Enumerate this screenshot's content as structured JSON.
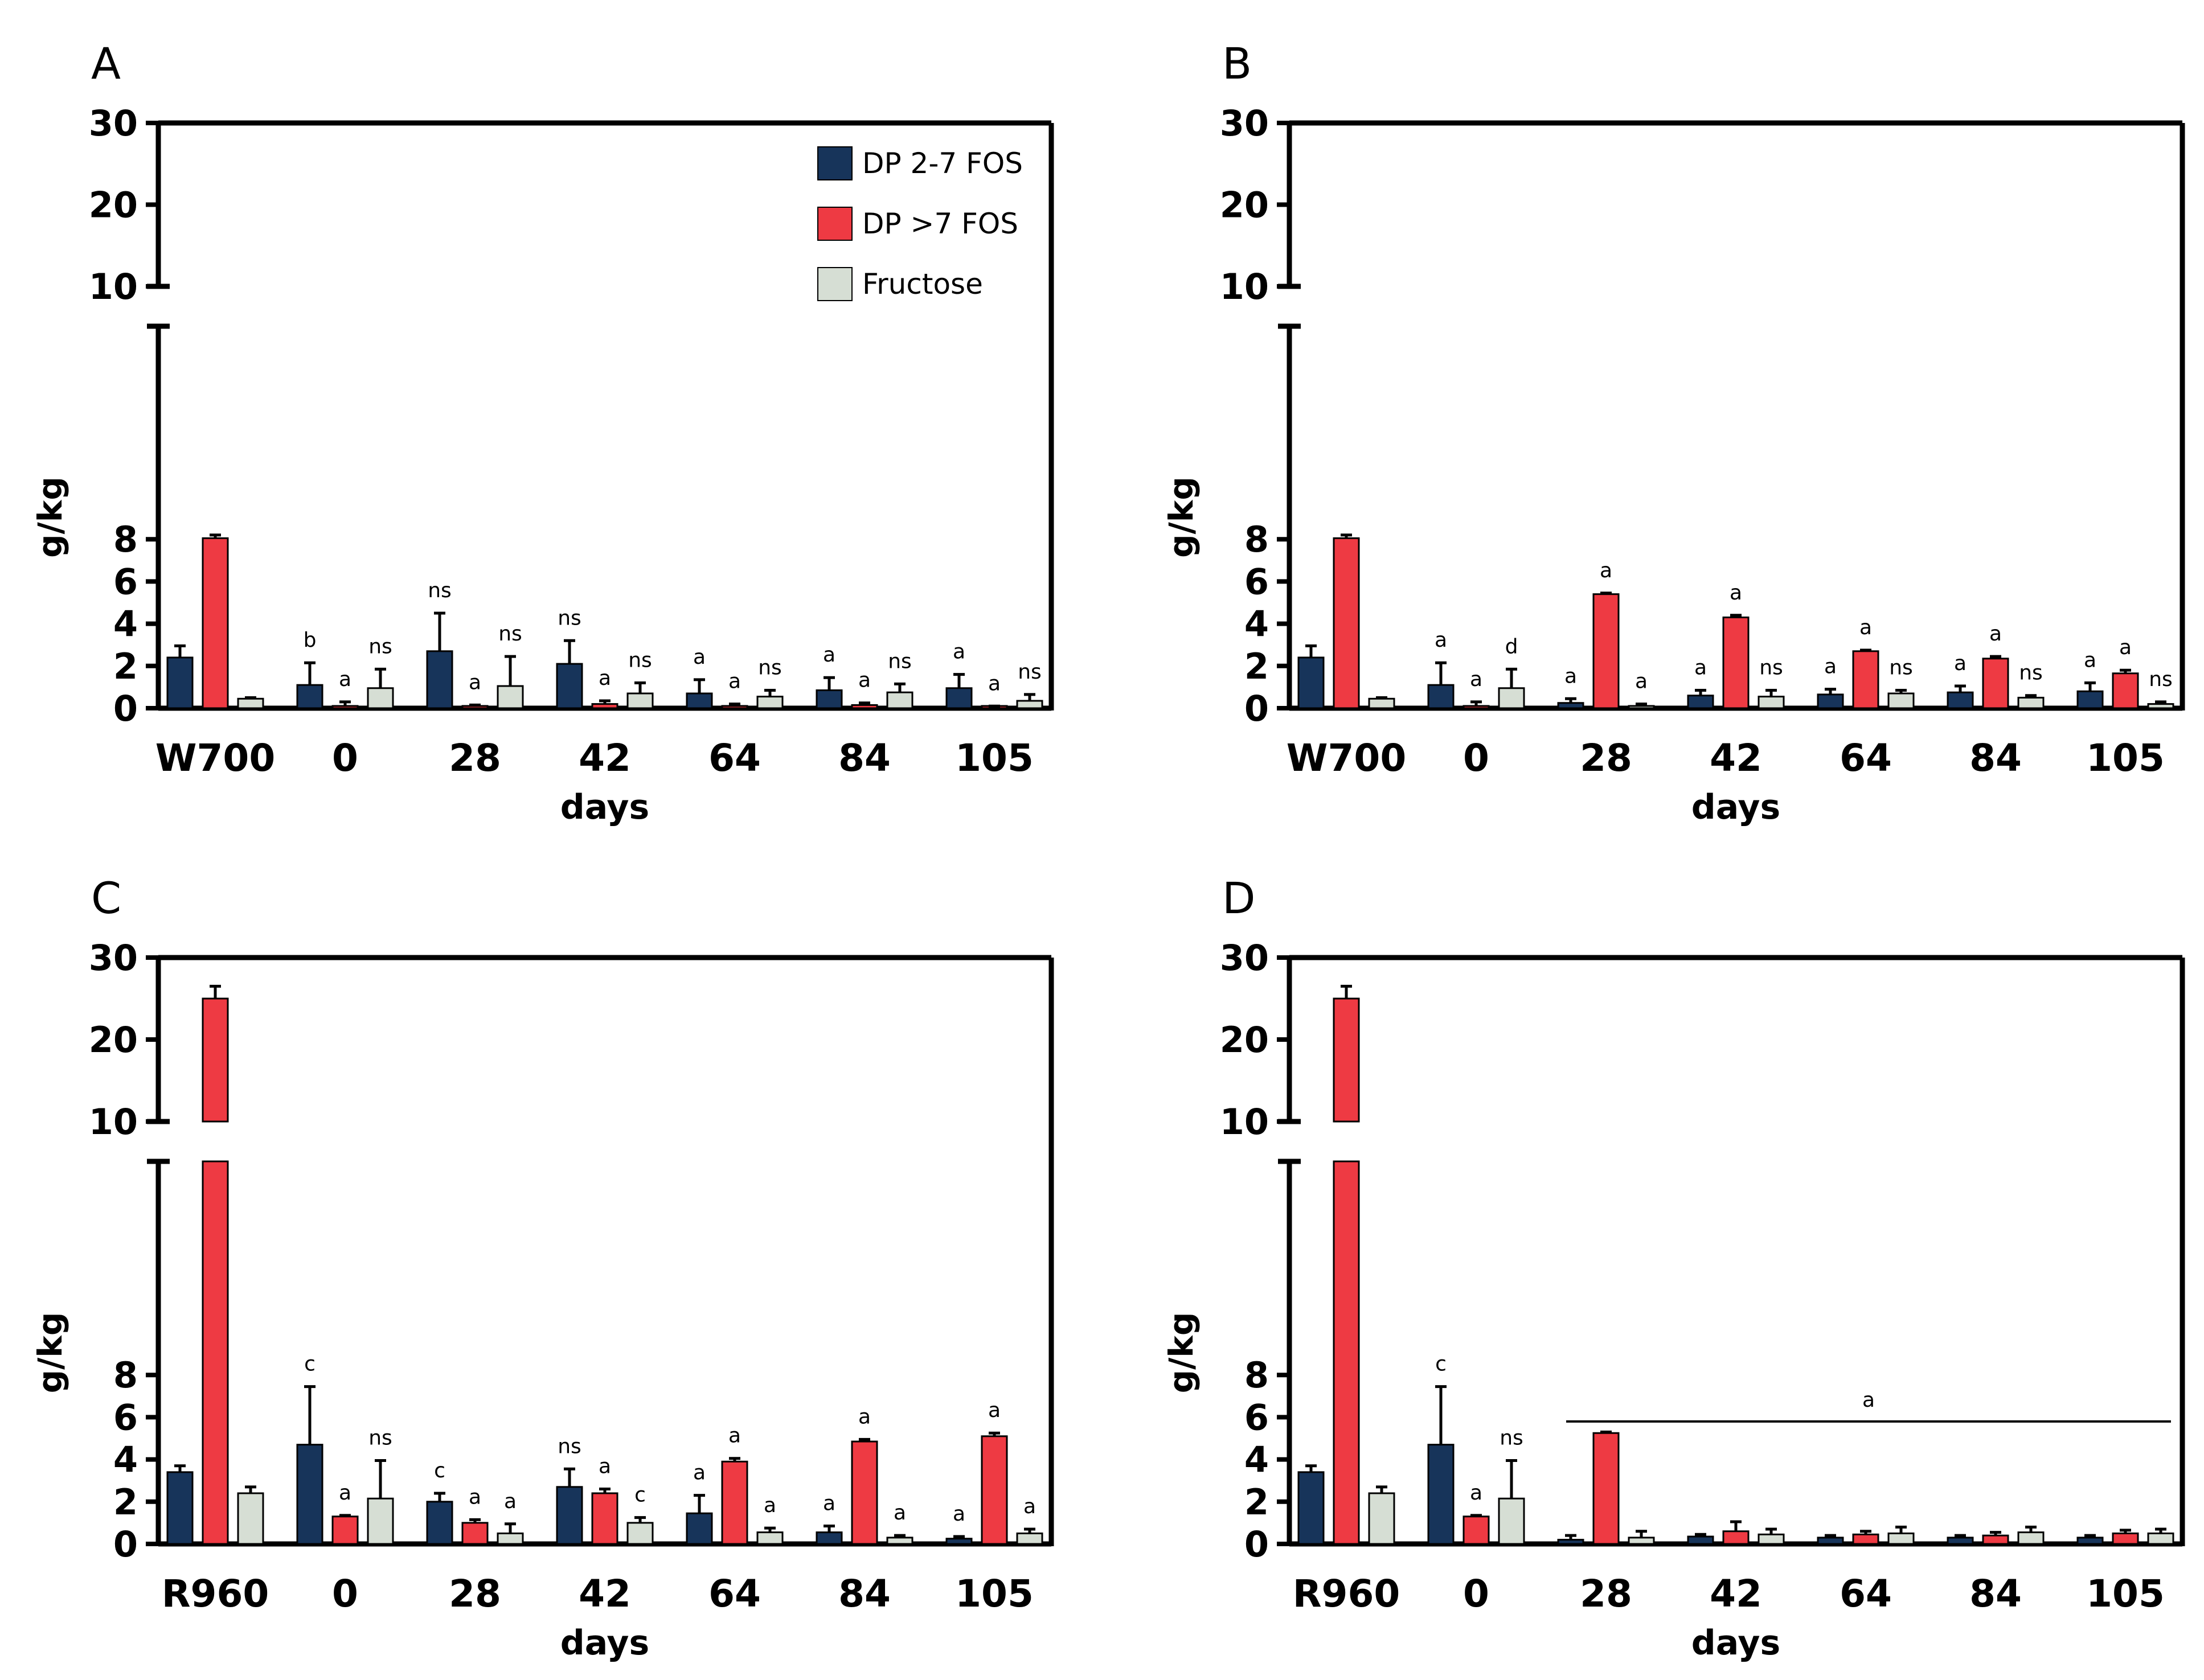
{
  "colors": {
    "dp27": "#17345a",
    "dp7": "#ee3a43",
    "fructose": "#d6ded4",
    "axis": "#000000"
  },
  "legend": [
    {
      "label": "DP 2-7 FOS",
      "color": "#17345a"
    },
    {
      "label": "DP >7 FOS",
      "color": "#ee3a43"
    },
    {
      "label": "Fructose",
      "color": "#d6ded4"
    }
  ],
  "chart_data": [
    {
      "panel": "A",
      "type": "bar",
      "ylabel": "g/kg",
      "xlabel": "days",
      "y_ticks": [
        "0",
        "2",
        "4",
        "6",
        "8",
        "10",
        "20",
        "30"
      ],
      "categories": [
        "W700",
        "0",
        "28",
        "42",
        "64",
        "84",
        "105"
      ],
      "series": [
        {
          "name": "DP 2-7 FOS",
          "values": [
            2.4,
            1.1,
            2.7,
            2.1,
            0.7,
            0.85,
            0.95
          ],
          "errors": [
            0.55,
            1.05,
            1.8,
            1.1,
            0.65,
            0.6,
            0.65
          ],
          "sig": [
            "",
            "b",
            "ns",
            "ns",
            "a",
            "a",
            "a"
          ]
        },
        {
          "name": "DP >7 FOS",
          "values": [
            8.05,
            0.1,
            0.1,
            0.2,
            0.1,
            0.15,
            0.05
          ],
          "errors": [
            0.15,
            0.2,
            0.05,
            0.15,
            0.1,
            0.1,
            0.05
          ],
          "sig": [
            "",
            "a",
            "a",
            "a",
            "a",
            "a",
            "a"
          ]
        },
        {
          "name": "Fructose",
          "values": [
            0.45,
            0.95,
            1.05,
            0.7,
            0.55,
            0.75,
            0.35
          ],
          "errors": [
            0.05,
            0.9,
            1.4,
            0.5,
            0.3,
            0.4,
            0.3
          ],
          "sig": [
            "",
            "ns",
            "ns",
            "ns",
            "ns",
            "ns",
            "ns"
          ]
        }
      ],
      "hline": null
    },
    {
      "panel": "B",
      "type": "bar",
      "ylabel": "g/kg",
      "xlabel": "days",
      "y_ticks": [
        "0",
        "2",
        "4",
        "6",
        "8",
        "10",
        "20",
        "30"
      ],
      "categories": [
        "W700",
        "0",
        "28",
        "42",
        "64",
        "84",
        "105"
      ],
      "series": [
        {
          "name": "DP 2-7 FOS",
          "values": [
            2.4,
            1.1,
            0.25,
            0.6,
            0.65,
            0.75,
            0.8
          ],
          "errors": [
            0.55,
            1.05,
            0.2,
            0.25,
            0.25,
            0.3,
            0.4
          ],
          "sig": [
            "",
            "a",
            "a",
            "a",
            "a",
            "a",
            "a"
          ]
        },
        {
          "name": "DP >7 FOS",
          "values": [
            8.05,
            0.1,
            5.4,
            4.3,
            2.7,
            2.35,
            1.65
          ],
          "errors": [
            0.15,
            0.2,
            0.05,
            0.1,
            0.05,
            0.1,
            0.15
          ],
          "sig": [
            "",
            "a",
            "a",
            "a",
            "a",
            "a",
            "a"
          ]
        },
        {
          "name": "Fructose",
          "values": [
            0.45,
            0.95,
            0.1,
            0.55,
            0.7,
            0.5,
            0.2
          ],
          "errors": [
            0.05,
            0.9,
            0.1,
            0.3,
            0.15,
            0.1,
            0.1
          ],
          "sig": [
            "",
            "d",
            "a",
            "ns",
            "ns",
            "ns",
            "ns"
          ]
        }
      ],
      "hline": null
    },
    {
      "panel": "C",
      "type": "bar",
      "ylabel": "g/kg",
      "xlabel": "days",
      "y_ticks": [
        "0",
        "2",
        "4",
        "6",
        "8",
        "10",
        "20",
        "30"
      ],
      "categories": [
        "R960",
        "0",
        "28",
        "42",
        "64",
        "84",
        "105"
      ],
      "series": [
        {
          "name": "DP 2-7 FOS",
          "values": [
            3.4,
            4.7,
            2.0,
            2.7,
            1.45,
            0.55,
            0.25
          ],
          "errors": [
            0.3,
            2.75,
            0.4,
            0.85,
            0.85,
            0.3,
            0.1
          ],
          "sig": [
            "",
            "c",
            "c",
            "ns",
            "a",
            "a",
            "a"
          ]
        },
        {
          "name": "DP >7 FOS",
          "values": [
            25,
            1.3,
            1.0,
            2.4,
            3.9,
            4.85,
            5.1
          ],
          "errors": [
            1.5,
            0.05,
            0.15,
            0.2,
            0.15,
            0.1,
            0.15
          ],
          "sig": [
            "",
            "a",
            "a",
            "a",
            "a",
            "a",
            "a"
          ]
        },
        {
          "name": "Fructose",
          "values": [
            2.4,
            2.15,
            0.5,
            1.0,
            0.55,
            0.3,
            0.5
          ],
          "errors": [
            0.3,
            1.8,
            0.45,
            0.25,
            0.2,
            0.1,
            0.2
          ],
          "sig": [
            "",
            "ns",
            "a",
            "c",
            "a",
            "a",
            "a"
          ]
        }
      ],
      "hline": null
    },
    {
      "panel": "D",
      "type": "bar",
      "ylabel": "g/kg",
      "xlabel": "days",
      "y_ticks": [
        "0",
        "2",
        "4",
        "6",
        "8",
        "10",
        "20",
        "30"
      ],
      "categories": [
        "R960",
        "0",
        "28",
        "42",
        "64",
        "84",
        "105"
      ],
      "series": [
        {
          "name": "DP 2-7 FOS",
          "values": [
            3.4,
            4.7,
            0.2,
            0.35,
            0.3,
            0.3,
            0.3
          ],
          "errors": [
            0.3,
            2.75,
            0.2,
            0.1,
            0.1,
            0.1,
            0.1
          ],
          "sig": [
            "",
            "c",
            "",
            "",
            "",
            "",
            ""
          ]
        },
        {
          "name": "DP >7 FOS",
          "values": [
            25,
            1.3,
            5.25,
            0.6,
            0.45,
            0.4,
            0.5
          ],
          "errors": [
            1.5,
            0.05,
            0.05,
            0.45,
            0.15,
            0.15,
            0.15
          ],
          "sig": [
            "",
            "a",
            "",
            "",
            "",
            "",
            ""
          ]
        },
        {
          "name": "Fructose",
          "values": [
            2.4,
            2.15,
            0.3,
            0.45,
            0.5,
            0.55,
            0.5
          ],
          "errors": [
            0.3,
            1.8,
            0.3,
            0.25,
            0.3,
            0.25,
            0.2
          ],
          "sig": [
            "",
            "ns",
            "",
            "",
            "",
            "",
            ""
          ]
        }
      ],
      "hline": {
        "y": 5.8,
        "from_category": "28",
        "to_category": "105",
        "label": "a"
      }
    }
  ]
}
